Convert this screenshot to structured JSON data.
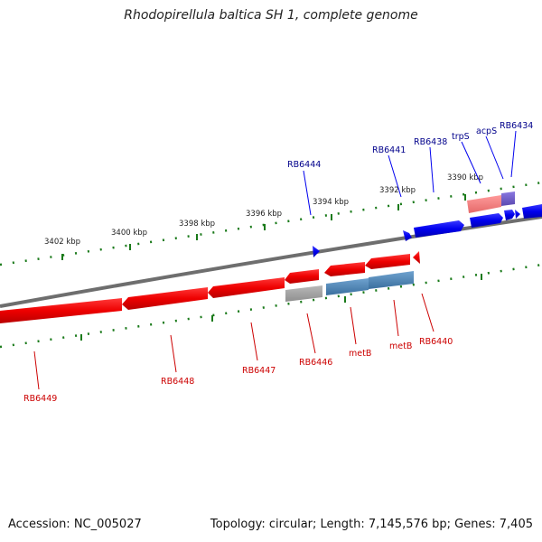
{
  "title": "Rhodopirellula baltica SH 1, complete genome",
  "accession": "Accession: NC_005027",
  "summary": "Topology: circular; Length: 7,145,576 bp; Genes: 7,405",
  "colors": {
    "forward_gene": "#0000ee",
    "reverse_gene": "#ee0000",
    "backbone": "#808080",
    "tick": "#1a7a1a",
    "label_forward": "#00008b",
    "label_reverse": "#cc0000",
    "highlight_blue": "#4682b4",
    "highlight_grey": "#aaaaaa",
    "highlight_pink": "#f08080",
    "highlight_purple": "#6a5acd"
  },
  "scale_labels": [
    "3402 kbp",
    "3400 kbp",
    "3398 kbp",
    "3396 kbp",
    "3394 kbp",
    "3392 kbp",
    "3390 kbp"
  ],
  "gene_labels_forward": [
    "RB6444",
    "RB6441",
    "RB6438",
    "trpS",
    "acpS",
    "RB6434"
  ],
  "gene_labels_reverse": [
    "RB6449",
    "RB6448",
    "RB6447",
    "RB6446",
    "metB",
    "metB",
    "RB6440"
  ]
}
